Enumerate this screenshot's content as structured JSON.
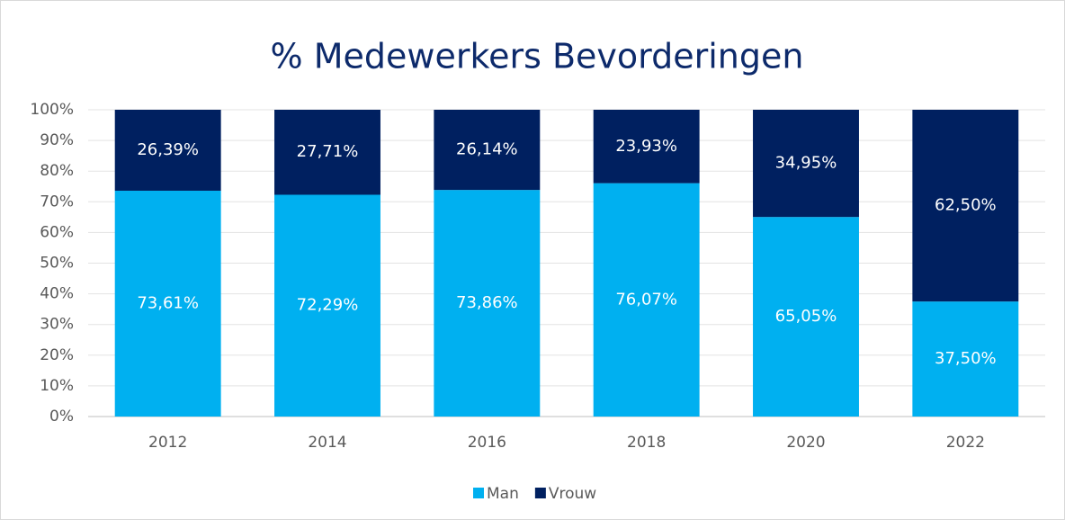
{
  "chart_data": {
    "type": "stacked_bar",
    "title": "% Medewerkers Bevorderingen",
    "categories": [
      "2012",
      "2014",
      "2016",
      "2018",
      "2020",
      "2022"
    ],
    "series": [
      {
        "name": "Man",
        "color": "#00b0f0",
        "values": [
          73.61,
          72.29,
          73.86,
          76.07,
          65.05,
          37.5
        ],
        "value_labels": [
          "73,61%",
          "72,29%",
          "73,86%",
          "76,07%",
          "65,05%",
          "37,50%"
        ]
      },
      {
        "name": "Vrouw",
        "color": "#002060",
        "values": [
          26.39,
          27.71,
          26.14,
          23.93,
          34.95,
          62.5
        ],
        "value_labels": [
          "26,39%",
          "27,71%",
          "26,14%",
          "23,93%",
          "34,95%",
          "62,50%"
        ]
      }
    ],
    "ylim": [
      0,
      100
    ],
    "yticks": [
      {
        "value": 0,
        "label": "0%"
      },
      {
        "value": 10,
        "label": "10%"
      },
      {
        "value": 20,
        "label": "20%"
      },
      {
        "value": 30,
        "label": "30%"
      },
      {
        "value": 40,
        "label": "40%"
      },
      {
        "value": 50,
        "label": "50%"
      },
      {
        "value": 60,
        "label": "60%"
      },
      {
        "value": 70,
        "label": "70%"
      },
      {
        "value": 80,
        "label": "80%"
      },
      {
        "value": 90,
        "label": "90%"
      },
      {
        "value": 100,
        "label": "100%"
      }
    ],
    "grid": true,
    "legend": "bottom"
  }
}
